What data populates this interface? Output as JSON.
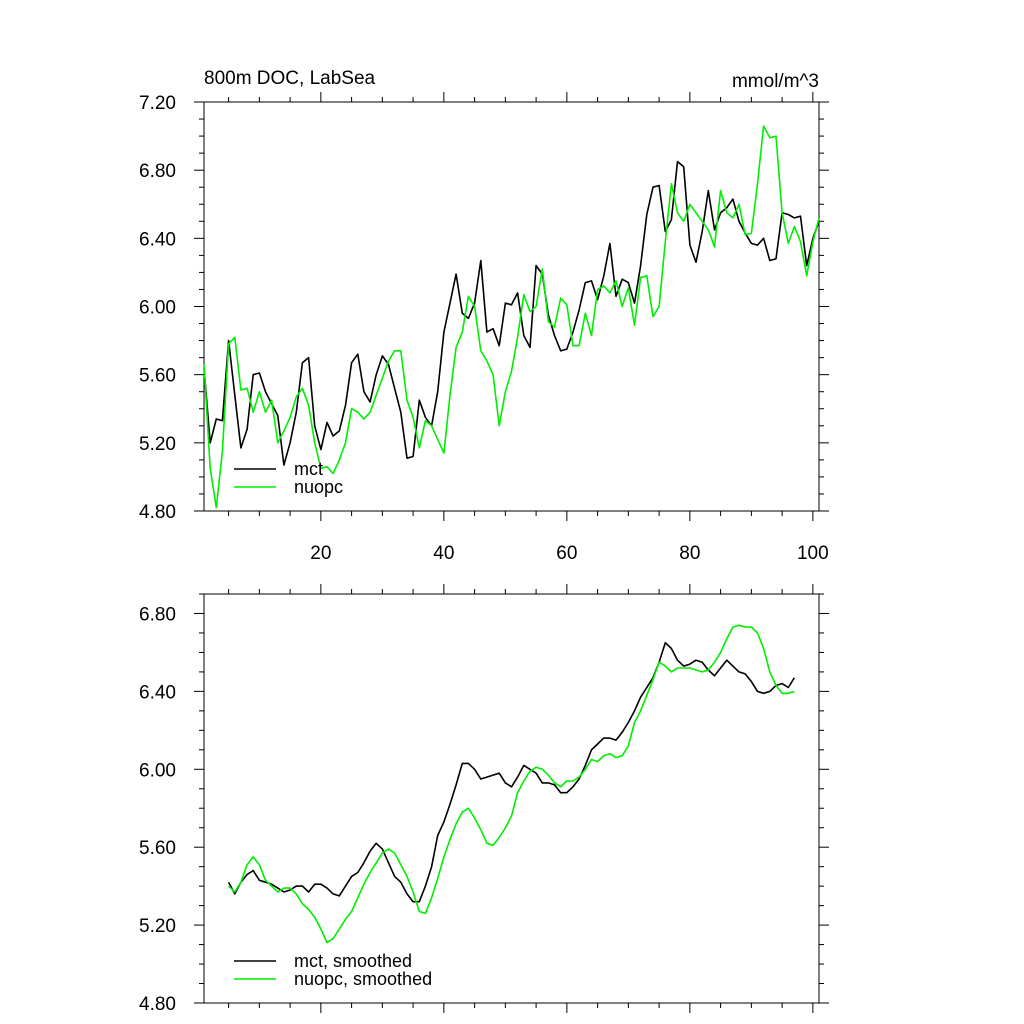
{
  "chart_data": [
    {
      "type": "line",
      "title": "800m DOC, LabSea",
      "units": "mmol/m^3",
      "xlim": [
        1,
        101
      ],
      "ylim": [
        4.8,
        7.2
      ],
      "yticks": [
        "7.20",
        "6.80",
        "6.40",
        "6.00",
        "5.60",
        "5.20",
        "4.80"
      ],
      "yticks_values": [
        7.2,
        6.8,
        6.4,
        6.0,
        5.6,
        5.2,
        4.8
      ],
      "xticks": [
        "20",
        "40",
        "60",
        "80",
        "100"
      ],
      "xticks_values": [
        20,
        40,
        60,
        80,
        100
      ],
      "legend_position": "bottom-left",
      "series": [
        {
          "name": "mct",
          "color": "#000000",
          "x": [
            1,
            2,
            3,
            4,
            5,
            6,
            7,
            8,
            9,
            10,
            11,
            12,
            13,
            14,
            15,
            16,
            17,
            18,
            19,
            20,
            21,
            22,
            23,
            24,
            25,
            26,
            27,
            28,
            29,
            30,
            31,
            32,
            33,
            34,
            35,
            36,
            37,
            38,
            39,
            40,
            41,
            42,
            43,
            44,
            45,
            46,
            47,
            48,
            49,
            50,
            51,
            52,
            53,
            54,
            55,
            56,
            57,
            58,
            59,
            60,
            61,
            62,
            63,
            64,
            65,
            66,
            67,
            68,
            69,
            70,
            71,
            72,
            73,
            74,
            75,
            76,
            77,
            78,
            79,
            80,
            81,
            82,
            83,
            84,
            85,
            86,
            87,
            88,
            89,
            90,
            91,
            92,
            93,
            94,
            95,
            96,
            97,
            98,
            99,
            100,
            101
          ],
          "values": [
            5.64,
            5.2,
            5.34,
            5.33,
            5.8,
            5.48,
            5.17,
            5.28,
            5.6,
            5.61,
            5.5,
            5.43,
            5.36,
            5.07,
            5.2,
            5.38,
            5.67,
            5.7,
            5.3,
            5.16,
            5.32,
            5.24,
            5.27,
            5.42,
            5.67,
            5.72,
            5.5,
            5.44,
            5.6,
            5.71,
            5.66,
            5.52,
            5.38,
            5.11,
            5.12,
            5.45,
            5.35,
            5.3,
            5.5,
            5.85,
            6.02,
            6.19,
            5.96,
            5.93,
            6.02,
            6.27,
            5.85,
            5.87,
            5.77,
            6.02,
            6.01,
            6.08,
            5.83,
            5.76,
            6.24,
            6.19,
            5.95,
            5.83,
            5.74,
            5.75,
            5.85,
            5.98,
            6.14,
            6.15,
            6.04,
            6.18,
            6.37,
            6.06,
            6.16,
            6.14,
            6.02,
            6.24,
            6.54,
            6.7,
            6.71,
            6.44,
            6.51,
            6.85,
            6.82,
            6.36,
            6.26,
            6.44,
            6.68,
            6.45,
            6.55,
            6.58,
            6.63,
            6.5,
            6.43,
            6.37,
            6.36,
            6.4,
            6.27,
            6.28,
            6.55,
            6.54,
            6.52,
            6.53,
            6.24,
            6.4,
            6.5
          ]
        },
        {
          "name": "nuopc",
          "color": "#00ee00",
          "x": [
            1,
            2,
            3,
            4,
            5,
            6,
            7,
            8,
            9,
            10,
            11,
            12,
            13,
            14,
            15,
            16,
            17,
            18,
            19,
            20,
            21,
            22,
            23,
            24,
            25,
            26,
            27,
            28,
            29,
            30,
            31,
            32,
            33,
            34,
            35,
            36,
            37,
            38,
            39,
            40,
            41,
            42,
            43,
            44,
            45,
            46,
            47,
            48,
            49,
            50,
            51,
            52,
            53,
            54,
            55,
            56,
            57,
            58,
            59,
            60,
            61,
            62,
            63,
            64,
            65,
            66,
            67,
            68,
            69,
            70,
            71,
            72,
            73,
            74,
            75,
            76,
            77,
            78,
            79,
            80,
            81,
            82,
            83,
            84,
            85,
            86,
            87,
            88,
            89,
            90,
            91,
            92,
            93,
            94,
            95,
            96,
            97,
            98,
            99,
            100,
            101
          ],
          "values": [
            5.66,
            5.05,
            4.82,
            5.15,
            5.78,
            5.82,
            5.51,
            5.52,
            5.38,
            5.5,
            5.38,
            5.45,
            5.2,
            5.27,
            5.35,
            5.47,
            5.52,
            5.42,
            5.2,
            5.05,
            5.06,
            5.02,
            5.1,
            5.2,
            5.4,
            5.38,
            5.34,
            5.38,
            5.48,
            5.58,
            5.68,
            5.74,
            5.74,
            5.45,
            5.35,
            5.17,
            5.33,
            5.3,
            5.22,
            5.14,
            5.48,
            5.76,
            5.85,
            6.06,
            6.0,
            5.74,
            5.68,
            5.6,
            5.3,
            5.5,
            5.62,
            5.82,
            6.07,
            5.97,
            6.0,
            6.22,
            5.91,
            5.88,
            6.05,
            6.01,
            5.77,
            5.77,
            5.96,
            5.83,
            6.1,
            6.12,
            6.08,
            6.15,
            6.0,
            6.11,
            5.89,
            6.17,
            6.18,
            5.94,
            6.0,
            6.38,
            6.72,
            6.55,
            6.5,
            6.6,
            6.55,
            6.5,
            6.45,
            6.35,
            6.68,
            6.55,
            6.52,
            6.6,
            6.42,
            6.43,
            6.72,
            7.06,
            6.99,
            7.0,
            6.55,
            6.37,
            6.47,
            6.38,
            6.18,
            6.38,
            6.52
          ]
        }
      ]
    },
    {
      "type": "line",
      "xlim": [
        1,
        101
      ],
      "ylim": [
        4.8,
        6.9
      ],
      "yticks": [
        "6.80",
        "6.40",
        "6.00",
        "5.60",
        "5.20",
        "4.80"
      ],
      "yticks_values": [
        6.8,
        6.4,
        6.0,
        5.6,
        5.2,
        4.8
      ],
      "xticks_values": [
        20,
        40,
        60,
        80,
        100
      ],
      "legend_position": "bottom-left",
      "series": [
        {
          "name": "mct, smoothed",
          "color": "#000000",
          "x": [
            5,
            6,
            7,
            8,
            9,
            10,
            11,
            12,
            13,
            14,
            15,
            16,
            17,
            18,
            19,
            20,
            21,
            22,
            23,
            24,
            25,
            26,
            27,
            28,
            29,
            30,
            31,
            32,
            33,
            34,
            35,
            36,
            37,
            38,
            39,
            40,
            41,
            42,
            43,
            44,
            45,
            46,
            47,
            48,
            49,
            50,
            51,
            52,
            53,
            54,
            55,
            56,
            57,
            58,
            59,
            60,
            61,
            62,
            63,
            64,
            65,
            66,
            67,
            68,
            69,
            70,
            71,
            72,
            73,
            74,
            75,
            76,
            77,
            78,
            79,
            80,
            81,
            82,
            83,
            84,
            85,
            86,
            87,
            88,
            89,
            90,
            91,
            92,
            93,
            94,
            95,
            96,
            97
          ],
          "values": [
            5.42,
            5.36,
            5.42,
            5.46,
            5.48,
            5.43,
            5.42,
            5.41,
            5.39,
            5.37,
            5.38,
            5.4,
            5.4,
            5.37,
            5.41,
            5.41,
            5.39,
            5.36,
            5.35,
            5.4,
            5.45,
            5.47,
            5.52,
            5.58,
            5.62,
            5.59,
            5.52,
            5.45,
            5.42,
            5.36,
            5.32,
            5.32,
            5.4,
            5.5,
            5.66,
            5.73,
            5.82,
            5.92,
            6.03,
            6.03,
            6.0,
            5.95,
            5.96,
            5.97,
            5.98,
            5.93,
            5.91,
            5.96,
            6.02,
            6.0,
            5.98,
            5.93,
            5.93,
            5.92,
            5.88,
            5.88,
            5.91,
            5.95,
            6.02,
            6.1,
            6.13,
            6.16,
            6.16,
            6.15,
            6.19,
            6.24,
            6.3,
            6.37,
            6.42,
            6.47,
            6.55,
            6.65,
            6.62,
            6.56,
            6.53,
            6.54,
            6.56,
            6.55,
            6.51,
            6.48,
            6.52,
            6.56,
            6.53,
            6.5,
            6.49,
            6.45,
            6.4,
            6.39,
            6.4,
            6.43,
            6.44,
            6.42,
            6.47
          ]
        },
        {
          "name": "nuopc, smoothed",
          "color": "#00ee00",
          "x": [
            5,
            6,
            7,
            8,
            9,
            10,
            11,
            12,
            13,
            14,
            15,
            16,
            17,
            18,
            19,
            20,
            21,
            22,
            23,
            24,
            25,
            26,
            27,
            28,
            29,
            30,
            31,
            32,
            33,
            34,
            35,
            36,
            37,
            38,
            39,
            40,
            41,
            42,
            43,
            44,
            45,
            46,
            47,
            48,
            49,
            50,
            51,
            52,
            53,
            54,
            55,
            56,
            57,
            58,
            59,
            60,
            61,
            62,
            63,
            64,
            65,
            66,
            67,
            68,
            69,
            70,
            71,
            72,
            73,
            74,
            75,
            76,
            77,
            78,
            79,
            80,
            81,
            82,
            83,
            84,
            85,
            86,
            87,
            88,
            89,
            90,
            91,
            92,
            93,
            94,
            95,
            96,
            97
          ],
          "values": [
            5.4,
            5.37,
            5.42,
            5.51,
            5.55,
            5.51,
            5.43,
            5.4,
            5.37,
            5.39,
            5.39,
            5.36,
            5.31,
            5.28,
            5.24,
            5.18,
            5.11,
            5.13,
            5.18,
            5.23,
            5.27,
            5.34,
            5.41,
            5.47,
            5.52,
            5.57,
            5.59,
            5.57,
            5.51,
            5.45,
            5.37,
            5.27,
            5.26,
            5.34,
            5.44,
            5.55,
            5.64,
            5.72,
            5.78,
            5.8,
            5.75,
            5.69,
            5.62,
            5.61,
            5.65,
            5.7,
            5.76,
            5.88,
            5.94,
            5.99,
            6.01,
            6.0,
            5.97,
            5.93,
            5.91,
            5.94,
            5.94,
            5.96,
            6.0,
            6.05,
            6.04,
            6.07,
            6.08,
            6.06,
            6.07,
            6.12,
            6.24,
            6.3,
            6.38,
            6.46,
            6.55,
            6.53,
            6.5,
            6.52,
            6.52,
            6.52,
            6.51,
            6.5,
            6.51,
            6.55,
            6.6,
            6.67,
            6.73,
            6.74,
            6.73,
            6.73,
            6.7,
            6.62,
            6.5,
            6.43,
            6.39,
            6.39,
            6.4
          ]
        }
      ]
    }
  ]
}
